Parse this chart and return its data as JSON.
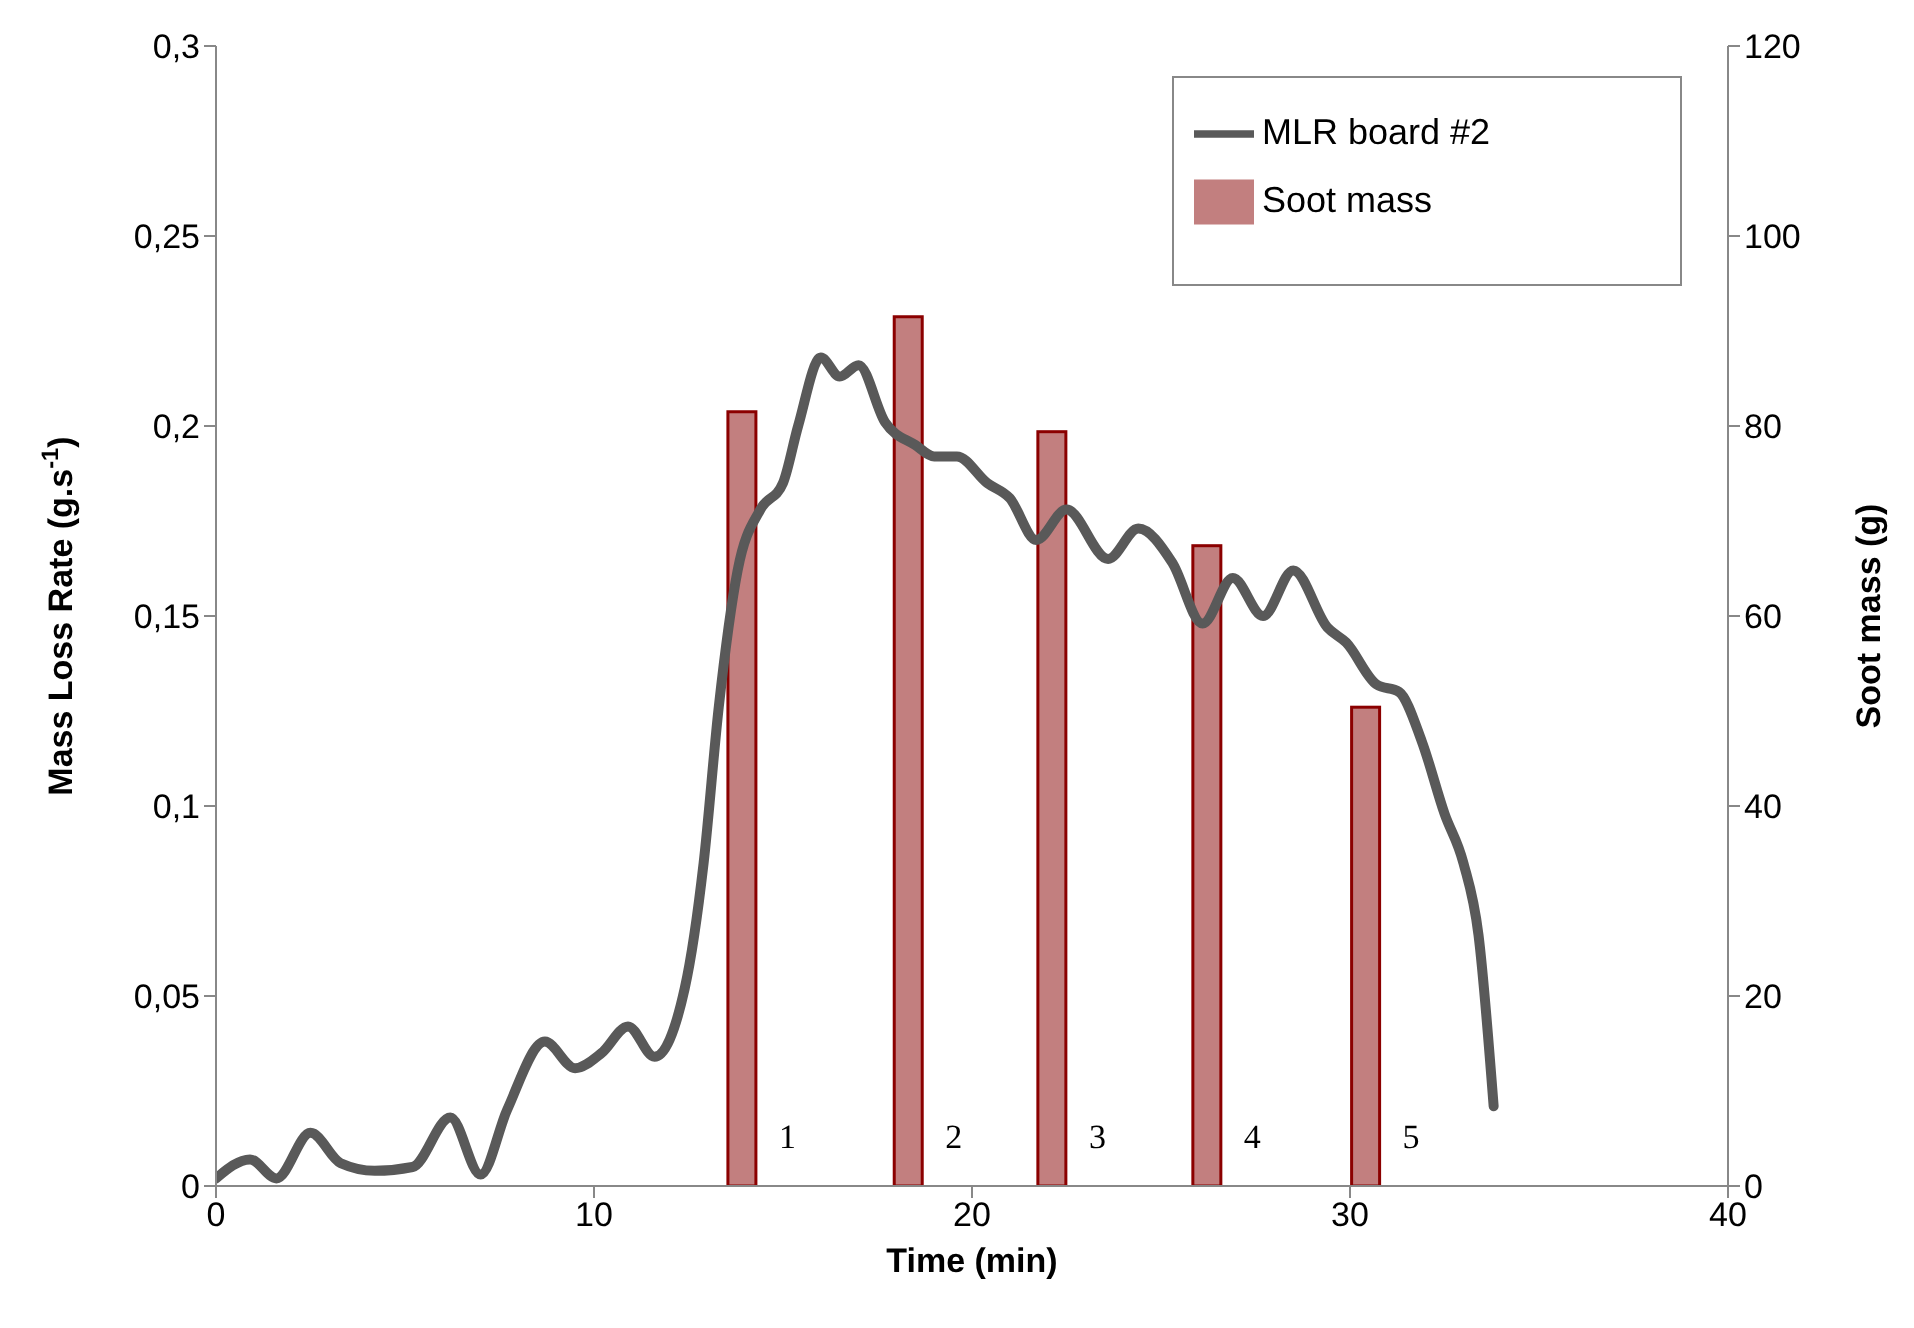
{
  "chart_data": {
    "type": "line",
    "xlabel": "Time (min)",
    "ylabel": "Mass Loss Rate (g.s$^{-1}$)",
    "y2label": "Soot mass (g)",
    "xlim": [
      0,
      40
    ],
    "xticks": [
      0,
      10,
      20,
      30,
      40
    ],
    "ylim": [
      0,
      0.3
    ],
    "yticks": [
      0,
      {
        "value": 0.05,
        "label": "0,05"
      },
      {
        "value": 0.1,
        "label": "0,1"
      },
      {
        "value": 0.15,
        "label": "0,15"
      },
      {
        "value": 0.2,
        "label": "0,2"
      },
      {
        "value": 0.25,
        "label": "0,25"
      },
      {
        "value": 0.3,
        "label": "0,3"
      }
    ],
    "y2lim": [
      0,
      120
    ],
    "y2ticks": [
      0,
      20,
      40,
      60,
      80,
      100,
      120
    ],
    "legend": "top right",
    "marker": "none",
    "line_style": "solid",
    "series": [
      {
        "name": "MLR board #2",
        "color": "#595959",
        "x": [
          0,
          0.9,
          1.6,
          2.5,
          3.3,
          4.2,
          5.2,
          6.2,
          7.0,
          7.7,
          8.7,
          9.5,
          10.2,
          10.9,
          11.6,
          12.4,
          12.9,
          13.3,
          13.8,
          14.4,
          15.0,
          15.4,
          16.0,
          16.5,
          17.0,
          17.7,
          18.5,
          19.0,
          19.6,
          20.4,
          21.0,
          21.7,
          22.5,
          23.6,
          24.4,
          25.3,
          26.1,
          26.9,
          27.7,
          28.5,
          29.4,
          29.9,
          30.7,
          31.3,
          31.9,
          32.5,
          33.0,
          33.4,
          33.8
        ],
        "values": [
          0.002,
          0.007,
          0.002,
          0.014,
          0.006,
          0.004,
          0.005,
          0.018,
          0.003,
          0.02,
          0.038,
          0.031,
          0.035,
          0.042,
          0.034,
          0.052,
          0.085,
          0.126,
          0.162,
          0.178,
          0.185,
          0.2,
          0.218,
          0.213,
          0.216,
          0.201,
          0.195,
          0.192,
          0.192,
          0.185,
          0.181,
          0.17,
          0.178,
          0.165,
          0.173,
          0.164,
          0.148,
          0.16,
          0.15,
          0.162,
          0.147,
          0.143,
          0.132,
          0.13,
          0.117,
          0.098,
          0.085,
          0.066,
          0.021
        ]
      },
      {
        "name": "Soot mass",
        "type": "bar",
        "axis": "y2",
        "color": "#c27f7f",
        "x": [
          13.9,
          18.3,
          22.1,
          26.2,
          30.4
        ],
        "values": [
          81.5,
          91.5,
          79.4,
          67.4,
          50.4
        ]
      }
    ],
    "annotations": [
      "1",
      "2",
      "3",
      "4",
      "5"
    ]
  }
}
